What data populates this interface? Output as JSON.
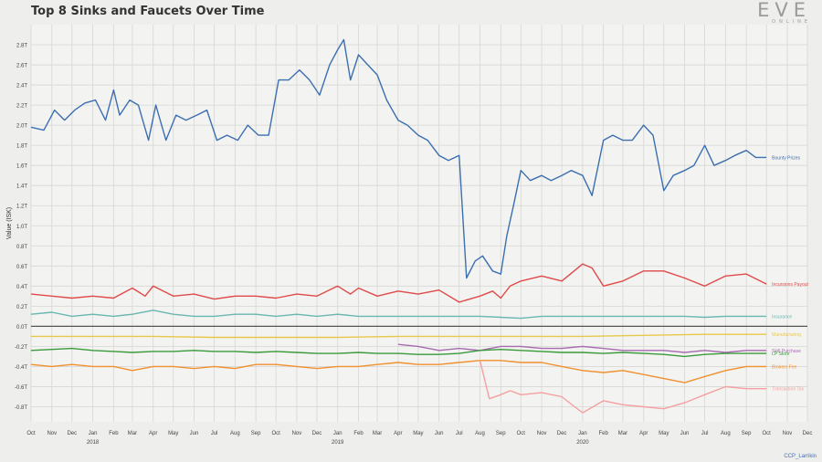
{
  "header": {
    "title": "Top 8 Sinks and Faucets Over Time",
    "logo_text": "EVE",
    "logo_subtext": "ONLINE"
  },
  "footer": {
    "credit": "CCP_Larrikin"
  },
  "chart_data": {
    "type": "line",
    "title": "Top 8 Sinks and Faucets Over Time",
    "ylabel": "Value (ISK)",
    "xlabel": "",
    "ylim": [
      -0.95,
      3.0
    ],
    "yticks": [
      -0.8,
      -0.6,
      -0.4,
      -0.2,
      0.0,
      0.2,
      0.4,
      0.6,
      0.8,
      1.0,
      1.2,
      1.4,
      1.6,
      1.8,
      2.0,
      2.2,
      2.4,
      2.6,
      2.8
    ],
    "yticklabels": [
      "-0.8T",
      "-0.6T",
      "-0.4T",
      "-0.2T",
      "0.0T",
      "0.2T",
      "0.4T",
      "0.6T",
      "0.8T",
      "1.0T",
      "1.2T",
      "1.4T",
      "1.6T",
      "1.8T",
      "2.0T",
      "2.2T",
      "2.4T",
      "2.6T",
      "2.8T"
    ],
    "xlim": [
      "2017-10-01",
      "2020-12-01"
    ],
    "xticks": [
      "2017-10-01",
      "2017-11-01",
      "2017-12-01",
      "2018-01-01",
      "2018-02-01",
      "2018-03-01",
      "2018-04-01",
      "2018-05-01",
      "2018-06-01",
      "2018-07-01",
      "2018-08-01",
      "2018-09-01",
      "2018-10-01",
      "2018-11-01",
      "2018-12-01",
      "2019-01-01",
      "2019-02-01",
      "2019-03-01",
      "2019-04-01",
      "2019-05-01",
      "2019-06-01",
      "2019-07-01",
      "2019-08-01",
      "2019-09-01",
      "2019-10-01",
      "2019-11-01",
      "2019-12-01",
      "2020-01-01",
      "2020-02-01",
      "2020-03-01",
      "2020-04-01",
      "2020-05-01",
      "2020-06-01",
      "2020-07-01",
      "2020-08-01",
      "2020-09-01",
      "2020-10-01",
      "2020-11-01",
      "2020-12-01"
    ],
    "xticklabels": [
      "Oct",
      "Nov",
      "Dec",
      "Jan",
      "Feb",
      "Mar",
      "Apr",
      "May",
      "Jun",
      "Jul",
      "Aug",
      "Sep",
      "Oct",
      "Nov",
      "Dec",
      "Jan",
      "Feb",
      "Mar",
      "Apr",
      "May",
      "Jun",
      "Jul",
      "Aug",
      "Sep",
      "Oct",
      "Nov",
      "Dec",
      "Jan",
      "Feb",
      "Mar",
      "Apr",
      "May",
      "Jun",
      "Jul",
      "Aug",
      "Sep",
      "Oct",
      "Nov",
      "Dec"
    ],
    "year_labels": [
      {
        "date": "2018-01-01",
        "label": "2018"
      },
      {
        "date": "2019-01-01",
        "label": "2019"
      },
      {
        "date": "2020-01-01",
        "label": "2020"
      }
    ],
    "grid": true,
    "zero_line": true,
    "series": [
      {
        "name": "Bounty Prizes",
        "color": "#3d6fb0",
        "x": [
          "2017-10-01",
          "2017-10-20",
          "2017-11-05",
          "2017-11-20",
          "2017-12-05",
          "2017-12-20",
          "2018-01-05",
          "2018-01-20",
          "2018-02-01",
          "2018-02-10",
          "2018-02-25",
          "2018-03-10",
          "2018-03-25",
          "2018-04-05",
          "2018-04-20",
          "2018-05-05",
          "2018-05-20",
          "2018-06-05",
          "2018-06-20",
          "2018-07-05",
          "2018-07-20",
          "2018-08-05",
          "2018-08-20",
          "2018-09-05",
          "2018-09-20",
          "2018-10-05",
          "2018-10-20",
          "2018-11-05",
          "2018-11-20",
          "2018-12-05",
          "2018-12-20",
          "2019-01-01",
          "2019-01-10",
          "2019-01-20",
          "2019-02-01",
          "2019-02-15",
          "2019-03-01",
          "2019-03-15",
          "2019-04-01",
          "2019-04-15",
          "2019-05-01",
          "2019-05-15",
          "2019-06-01",
          "2019-06-15",
          "2019-07-01",
          "2019-07-12",
          "2019-07-25",
          "2019-08-05",
          "2019-08-20",
          "2019-09-01",
          "2019-09-10",
          "2019-09-20",
          "2019-10-01",
          "2019-10-15",
          "2019-11-01",
          "2019-11-15",
          "2019-12-01",
          "2019-12-15",
          "2020-01-01",
          "2020-01-15",
          "2020-02-01",
          "2020-02-15",
          "2020-03-01",
          "2020-03-15",
          "2020-04-01",
          "2020-04-15",
          "2020-05-01",
          "2020-05-15",
          "2020-06-01",
          "2020-06-15",
          "2020-07-01",
          "2020-07-15",
          "2020-08-01",
          "2020-08-15",
          "2020-09-01",
          "2020-09-15",
          "2020-10-01"
        ],
        "values": [
          1.98,
          1.95,
          2.15,
          2.05,
          2.15,
          2.22,
          2.25,
          2.05,
          2.35,
          2.1,
          2.25,
          2.2,
          1.85,
          2.2,
          1.85,
          2.1,
          2.05,
          2.1,
          2.15,
          1.85,
          1.9,
          1.85,
          2.0,
          1.9,
          1.9,
          2.45,
          2.45,
          2.55,
          2.45,
          2.3,
          2.6,
          2.75,
          2.85,
          2.45,
          2.7,
          2.6,
          2.5,
          2.25,
          2.05,
          2.0,
          1.9,
          1.85,
          1.7,
          1.65,
          1.7,
          0.48,
          0.65,
          0.7,
          0.55,
          0.52,
          0.9,
          1.2,
          1.55,
          1.45,
          1.5,
          1.45,
          1.5,
          1.55,
          1.5,
          1.3,
          1.85,
          1.9,
          1.85,
          1.85,
          2.0,
          1.9,
          1.35,
          1.5,
          1.55,
          1.6,
          1.8,
          1.6,
          1.65,
          1.7,
          1.75,
          1.68,
          1.68
        ]
      },
      {
        "name": "Incursions Payout",
        "color": "#e04a4a",
        "x": [
          "2017-10-01",
          "2017-11-01",
          "2017-12-01",
          "2018-01-01",
          "2018-02-01",
          "2018-03-01",
          "2018-03-20",
          "2018-04-01",
          "2018-05-01",
          "2018-06-01",
          "2018-07-01",
          "2018-08-01",
          "2018-09-01",
          "2018-10-01",
          "2018-11-01",
          "2018-12-01",
          "2019-01-01",
          "2019-01-20",
          "2019-02-01",
          "2019-03-01",
          "2019-04-01",
          "2019-05-01",
          "2019-06-01",
          "2019-07-01",
          "2019-08-01",
          "2019-08-20",
          "2019-09-01",
          "2019-09-15",
          "2019-10-01",
          "2019-11-01",
          "2019-12-01",
          "2020-01-01",
          "2020-01-15",
          "2020-02-01",
          "2020-03-01",
          "2020-04-01",
          "2020-05-01",
          "2020-06-01",
          "2020-07-01",
          "2020-08-01",
          "2020-09-01",
          "2020-10-01"
        ],
        "values": [
          0.32,
          0.3,
          0.28,
          0.3,
          0.28,
          0.38,
          0.3,
          0.4,
          0.3,
          0.32,
          0.27,
          0.3,
          0.3,
          0.28,
          0.32,
          0.3,
          0.4,
          0.32,
          0.38,
          0.3,
          0.35,
          0.32,
          0.36,
          0.24,
          0.3,
          0.35,
          0.28,
          0.4,
          0.45,
          0.5,
          0.45,
          0.62,
          0.58,
          0.4,
          0.45,
          0.55,
          0.55,
          0.48,
          0.4,
          0.5,
          0.52,
          0.42
        ]
      },
      {
        "name": "Insurance",
        "color": "#6ab6b0",
        "x": [
          "2017-10-01",
          "2017-11-01",
          "2017-12-01",
          "2018-01-01",
          "2018-02-01",
          "2018-03-01",
          "2018-04-01",
          "2018-05-01",
          "2018-06-01",
          "2018-07-01",
          "2018-08-01",
          "2018-09-01",
          "2018-10-01",
          "2018-11-01",
          "2018-12-01",
          "2019-01-01",
          "2019-02-01",
          "2019-03-01",
          "2019-04-01",
          "2019-05-01",
          "2019-06-01",
          "2019-07-01",
          "2019-08-01",
          "2019-09-01",
          "2019-10-01",
          "2019-11-01",
          "2019-12-01",
          "2020-01-01",
          "2020-02-01",
          "2020-03-01",
          "2020-04-01",
          "2020-05-01",
          "2020-06-01",
          "2020-07-01",
          "2020-08-01",
          "2020-09-01",
          "2020-10-01"
        ],
        "values": [
          0.12,
          0.14,
          0.1,
          0.12,
          0.1,
          0.12,
          0.16,
          0.12,
          0.1,
          0.1,
          0.12,
          0.12,
          0.1,
          0.12,
          0.1,
          0.12,
          0.1,
          0.1,
          0.1,
          0.1,
          0.1,
          0.1,
          0.1,
          0.09,
          0.08,
          0.1,
          0.1,
          0.1,
          0.1,
          0.1,
          0.1,
          0.1,
          0.1,
          0.09,
          0.1,
          0.1,
          0.1
        ]
      },
      {
        "name": "Manufacturing",
        "color": "#e8c84a",
        "x": [
          "2017-10-01",
          "2018-01-01",
          "2018-04-01",
          "2018-07-01",
          "2018-10-01",
          "2019-01-01",
          "2019-04-01",
          "2019-07-01",
          "2019-10-01",
          "2020-01-01",
          "2020-04-01",
          "2020-07-01",
          "2020-10-01"
        ],
        "values": [
          -0.1,
          -0.1,
          -0.1,
          -0.11,
          -0.11,
          -0.11,
          -0.1,
          -0.1,
          -0.1,
          -0.1,
          -0.09,
          -0.08,
          -0.08
        ]
      },
      {
        "name": "Skill Purchase",
        "color": "#a86ab0",
        "x": [
          "2019-04-01",
          "2019-05-01",
          "2019-06-01",
          "2019-07-01",
          "2019-08-01",
          "2019-09-01",
          "2019-10-01",
          "2019-11-01",
          "2019-12-01",
          "2020-01-01",
          "2020-02-01",
          "2020-03-01",
          "2020-04-01",
          "2020-05-01",
          "2020-06-01",
          "2020-07-01",
          "2020-08-01",
          "2020-09-01",
          "2020-10-01"
        ],
        "values": [
          -0.18,
          -0.2,
          -0.24,
          -0.22,
          -0.24,
          -0.2,
          -0.2,
          -0.22,
          -0.22,
          -0.2,
          -0.22,
          -0.24,
          -0.24,
          -0.24,
          -0.26,
          -0.24,
          -0.26,
          -0.24,
          -0.24
        ]
      },
      {
        "name": "LP Store",
        "color": "#3a9a3a",
        "x": [
          "2017-10-01",
          "2017-11-01",
          "2017-12-01",
          "2018-01-01",
          "2018-02-01",
          "2018-03-01",
          "2018-04-01",
          "2018-05-01",
          "2018-06-01",
          "2018-07-01",
          "2018-08-01",
          "2018-09-01",
          "2018-10-01",
          "2018-11-01",
          "2018-12-01",
          "2019-01-01",
          "2019-02-01",
          "2019-03-01",
          "2019-04-01",
          "2019-05-01",
          "2019-06-01",
          "2019-07-01",
          "2019-08-01",
          "2019-09-01",
          "2019-10-01",
          "2019-11-01",
          "2019-12-01",
          "2020-01-01",
          "2020-02-01",
          "2020-03-01",
          "2020-04-01",
          "2020-05-01",
          "2020-06-01",
          "2020-07-01",
          "2020-08-01",
          "2020-09-01",
          "2020-10-01"
        ],
        "values": [
          -0.24,
          -0.23,
          -0.22,
          -0.24,
          -0.25,
          -0.26,
          -0.25,
          -0.25,
          -0.24,
          -0.25,
          -0.25,
          -0.26,
          -0.25,
          -0.26,
          -0.27,
          -0.27,
          -0.26,
          -0.27,
          -0.27,
          -0.28,
          -0.28,
          -0.27,
          -0.24,
          -0.23,
          -0.24,
          -0.25,
          -0.26,
          -0.26,
          -0.27,
          -0.26,
          -0.27,
          -0.28,
          -0.3,
          -0.28,
          -0.27,
          -0.27,
          -0.27
        ]
      },
      {
        "name": "Brokers Fee",
        "color": "#f0902e",
        "x": [
          "2017-10-01",
          "2017-11-01",
          "2017-12-01",
          "2018-01-01",
          "2018-02-01",
          "2018-03-01",
          "2018-04-01",
          "2018-05-01",
          "2018-06-01",
          "2018-07-01",
          "2018-08-01",
          "2018-09-01",
          "2018-10-01",
          "2018-11-01",
          "2018-12-01",
          "2019-01-01",
          "2019-02-01",
          "2019-03-01",
          "2019-04-01",
          "2019-05-01",
          "2019-06-01",
          "2019-07-01",
          "2019-08-01",
          "2019-09-01",
          "2019-10-01",
          "2019-11-01",
          "2019-12-01",
          "2020-01-01",
          "2020-02-01",
          "2020-03-01",
          "2020-04-01",
          "2020-05-01",
          "2020-06-01",
          "2020-07-01",
          "2020-08-01",
          "2020-09-01",
          "2020-10-01"
        ],
        "values": [
          -0.38,
          -0.4,
          -0.38,
          -0.4,
          -0.4,
          -0.44,
          -0.4,
          -0.4,
          -0.42,
          -0.4,
          -0.42,
          -0.38,
          -0.38,
          -0.4,
          -0.42,
          -0.4,
          -0.4,
          -0.38,
          -0.36,
          -0.38,
          -0.38,
          -0.36,
          -0.34,
          -0.34,
          -0.36,
          -0.36,
          -0.4,
          -0.44,
          -0.46,
          -0.44,
          -0.48,
          -0.52,
          -0.56,
          -0.5,
          -0.44,
          -0.4,
          -0.4
        ]
      },
      {
        "name": "Transaction Tax",
        "color": "#f4a0a0",
        "x": [
          "2019-08-01",
          "2019-08-15",
          "2019-09-01",
          "2019-09-15",
          "2019-10-01",
          "2019-11-01",
          "2019-12-01",
          "2019-12-20",
          "2020-01-01",
          "2020-02-01",
          "2020-03-01",
          "2020-04-01",
          "2020-05-01",
          "2020-06-01",
          "2020-07-01",
          "2020-08-01",
          "2020-09-01",
          "2020-10-01"
        ],
        "values": [
          -0.34,
          -0.72,
          -0.68,
          -0.64,
          -0.68,
          -0.66,
          -0.7,
          -0.8,
          -0.86,
          -0.74,
          -0.78,
          -0.8,
          -0.82,
          -0.76,
          -0.68,
          -0.6,
          -0.62,
          -0.62
        ]
      }
    ]
  }
}
